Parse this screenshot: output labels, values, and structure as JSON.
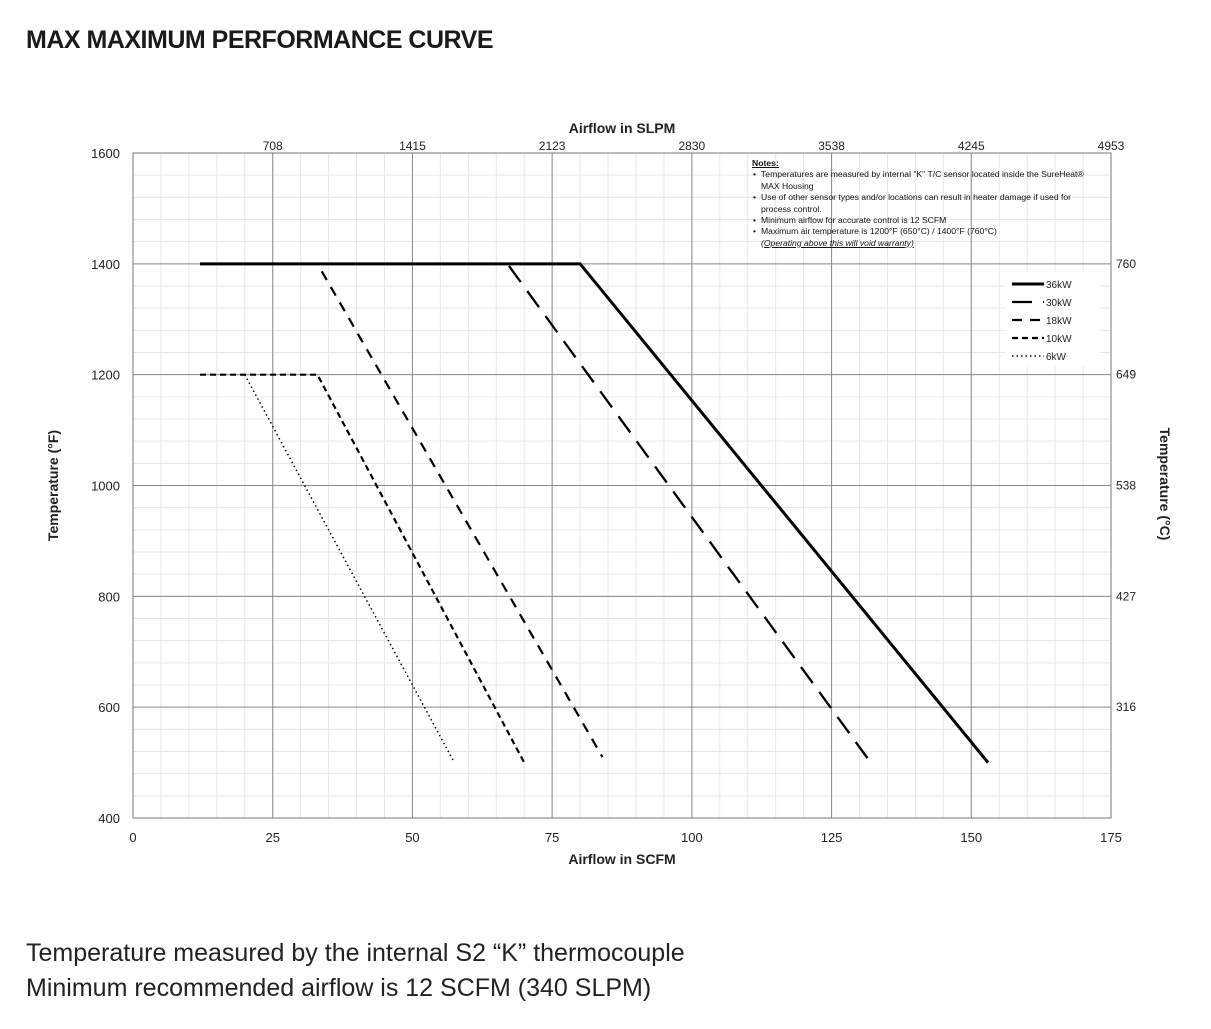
{
  "page": {
    "title": "MAX MAXIMUM PERFORMANCE CURVE",
    "footer_lines": [
      "Temperature measured by the internal S2 “K” thermocouple",
      "Minimum recommended airflow is 12 SCFM (340 SLPM)"
    ]
  },
  "notes": {
    "title": "Notes:",
    "items": [
      "Temperatures are measured by internal \"K\" T/C sensor  located inside the SureHeat® MAX Housing",
      "Use of other sensor types and/or locations can result in heater damage if used for process control.",
      "Minimum airflow for accurate control is 12 SCFM",
      "Maximum air temperature is 1200°F (650°C) / 1400°F (760°C)"
    ],
    "warning": "(Operating above this will void warranty)"
  },
  "chart_data": {
    "type": "line",
    "title": "",
    "xlabel": "Airflow in SCFM",
    "ylabel": "Temperature (°F)",
    "x2label": "Airflow in SLPM",
    "y2label": "Temperature (°C)",
    "xlim": [
      0,
      175
    ],
    "ylim": [
      400,
      1600
    ],
    "x_ticks": [
      0,
      25,
      50,
      75,
      100,
      125,
      150,
      175
    ],
    "y_ticks": [
      400,
      600,
      800,
      1000,
      1200,
      1400,
      1600
    ],
    "x2_ticks": [
      {
        "at": 25,
        "label": "708"
      },
      {
        "at": 50,
        "label": "1415"
      },
      {
        "at": 75,
        "label": "2123"
      },
      {
        "at": 100,
        "label": "2830"
      },
      {
        "at": 125,
        "label": "3538"
      },
      {
        "at": 150,
        "label": "4245"
      },
      {
        "at": 175,
        "label": "4953"
      }
    ],
    "y2_ticks": [
      {
        "at": 1400,
        "label": "760"
      },
      {
        "at": 1200,
        "label": "649"
      },
      {
        "at": 1000,
        "label": "538"
      },
      {
        "at": 800,
        "label": "427"
      },
      {
        "at": 600,
        "label": "316"
      }
    ],
    "grid": true,
    "minor_grid": {
      "x_step": 5,
      "y_step": 40
    },
    "legend_position": "top-right",
    "series": [
      {
        "name": "36kW",
        "style": "solid",
        "x": [
          12,
          80,
          153
        ],
        "y": [
          1400,
          1400,
          500
        ]
      },
      {
        "name": "30kW",
        "style": "longdash",
        "x": [
          12,
          67,
          132
        ],
        "y": [
          1400,
          1400,
          500
        ]
      },
      {
        "name": "18kW",
        "style": "dash",
        "x": [
          12,
          33,
          84
        ],
        "y": [
          1400,
          1400,
          510
        ]
      },
      {
        "name": "10kW",
        "style": "shortdash",
        "x": [
          12,
          33,
          70
        ],
        "y": [
          1200,
          1200,
          500
        ]
      },
      {
        "name": "6kW",
        "style": "dot",
        "x": [
          20,
          57.5
        ],
        "y": [
          1200,
          500
        ]
      }
    ]
  }
}
